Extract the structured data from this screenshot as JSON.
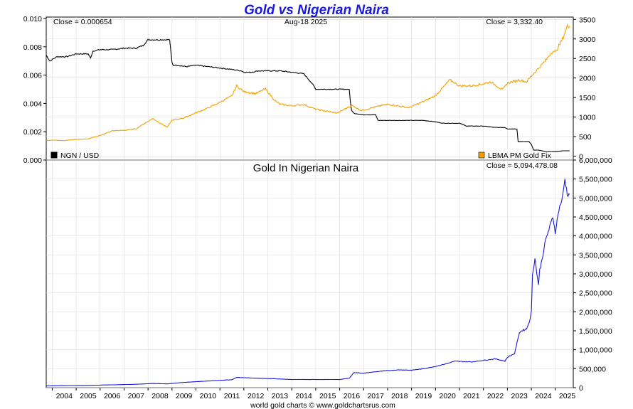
{
  "title": "Gold vs Nigerian Naira",
  "date": "Aug-18  2025",
  "footer": "world gold charts © www.goldchartsrus.com",
  "chart_data": [
    {
      "type": "line",
      "panel": "top",
      "close_left": "Close = 0.000654",
      "close_right": "Close = 3,332.40",
      "legend_left": "NGN / USD",
      "legend_right": "LBMA PM Gold Fix",
      "legend_placement": "bottom",
      "grid": true,
      "x_range": [
        2003.75,
        2025.75
      ],
      "y_left_range": [
        0.0,
        0.0101
      ],
      "y_left_ticks": [
        "0.000",
        "0.002",
        "0.004",
        "0.006",
        "0.008",
        "0.010"
      ],
      "y_right_range": [
        -100,
        3560
      ],
      "y_right_ticks": [
        "0",
        "500",
        "1000",
        "1500",
        "2000",
        "2500",
        "3000",
        "3500"
      ],
      "series": [
        {
          "name": "NGN / USD",
          "axis": "left",
          "color": "#000000",
          "x": [
            2003.75,
            2003.9,
            2004.2,
            2004.6,
            2005.0,
            2005.5,
            2005.6,
            2005.7,
            2006.0,
            2006.5,
            2007.0,
            2007.5,
            2007.8,
            2008.0,
            2008.3,
            2008.6,
            2008.9,
            2009.0,
            2009.05,
            2009.2,
            2009.6,
            2010.0,
            2010.5,
            2011.0,
            2011.5,
            2011.9,
            2012.0,
            2012.3,
            2012.6,
            2013.0,
            2013.5,
            2014.0,
            2014.5,
            2014.9,
            2015.0,
            2015.1,
            2015.5,
            2016.0,
            2016.4,
            2016.45,
            2016.5,
            2016.6,
            2017.0,
            2017.5,
            2017.6,
            2018.0,
            2018.5,
            2019.0,
            2019.5,
            2020.0,
            2020.3,
            2020.4,
            2021.0,
            2021.3,
            2021.5,
            2022.0,
            2022.5,
            2022.9,
            2023.0,
            2023.4,
            2023.45,
            2023.6,
            2023.9,
            2024.0,
            2024.1,
            2024.3,
            2024.6,
            2025.0,
            2025.3,
            2025.6
          ],
          "y": [
            0.0074,
            0.007,
            0.0073,
            0.0073,
            0.0075,
            0.0075,
            0.0072,
            0.0077,
            0.0078,
            0.0078,
            0.0079,
            0.0079,
            0.0081,
            0.0085,
            0.0085,
            0.0085,
            0.0085,
            0.0069,
            0.0067,
            0.0067,
            0.0066,
            0.0067,
            0.0066,
            0.0065,
            0.0064,
            0.0063,
            0.0062,
            0.0062,
            0.0063,
            0.0063,
            0.0063,
            0.0062,
            0.0061,
            0.0053,
            0.005,
            0.005,
            0.005,
            0.005,
            0.005,
            0.004,
            0.0035,
            0.0033,
            0.0032,
            0.0032,
            0.0028,
            0.0028,
            0.0028,
            0.0028,
            0.0028,
            0.0027,
            0.0026,
            0.0026,
            0.0026,
            0.0024,
            0.0024,
            0.0024,
            0.0023,
            0.0023,
            0.0022,
            0.0022,
            0.0013,
            0.0013,
            0.0013,
            0.0011,
            0.0007,
            0.0007,
            0.0006,
            0.0006,
            0.00065,
            0.000654
          ]
        },
        {
          "name": "LBMA PM Gold Fix",
          "axis": "right",
          "color": "#f5a000",
          "x": [
            2003.75,
            2004.0,
            2004.5,
            2005.0,
            2005.5,
            2006.0,
            2006.4,
            2006.5,
            2007.0,
            2007.5,
            2008.0,
            2008.2,
            2008.8,
            2009.0,
            2009.5,
            2010.0,
            2010.5,
            2011.0,
            2011.5,
            2011.7,
            2012.0,
            2012.5,
            2012.9,
            2013.3,
            2013.5,
            2014.0,
            2014.5,
            2015.0,
            2015.9,
            2016.5,
            2016.9,
            2017.5,
            2018.0,
            2018.5,
            2018.9,
            2019.5,
            2020.0,
            2020.6,
            2021.0,
            2021.5,
            2022.0,
            2022.3,
            2022.8,
            2023.0,
            2023.5,
            2023.8,
            2024.0,
            2024.3,
            2024.6,
            2024.9,
            2025.0,
            2025.3,
            2025.5,
            2025.6
          ],
          "y": [
            400,
            410,
            400,
            430,
            440,
            530,
            620,
            650,
            660,
            700,
            890,
            960,
            740,
            920,
            980,
            1110,
            1230,
            1380,
            1540,
            1800,
            1650,
            1600,
            1720,
            1420,
            1330,
            1290,
            1320,
            1200,
            1100,
            1300,
            1170,
            1260,
            1330,
            1280,
            1240,
            1400,
            1550,
            1950,
            1800,
            1800,
            1850,
            1900,
            1700,
            1870,
            1950,
            1900,
            2050,
            2250,
            2450,
            2700,
            2650,
            3000,
            3320,
            3332
          ]
        }
      ]
    },
    {
      "type": "line",
      "panel": "bottom",
      "title": "Gold In Nigerian Naira",
      "close_right": "Close = 5,094,478.08",
      "grid": true,
      "x_range": [
        2003.75,
        2025.75
      ],
      "y_right_range": [
        0,
        6000000
      ],
      "y_right_ticks": [
        "0",
        "500,000",
        "1,000,000",
        "1,500,000",
        "2,000,000",
        "2,500,000",
        "3,000,000",
        "3,500,000",
        "4,000,000",
        "4,500,000",
        "5,000,000",
        "5,500,000",
        "6,000,000"
      ],
      "x_tick_labels": [
        "2004",
        "2005",
        "2006",
        "2007",
        "2008",
        "2009",
        "2010",
        "2011",
        "2012",
        "2013",
        "2014",
        "2015",
        "2016",
        "2017",
        "2018",
        "2019",
        "2020",
        "2021",
        "2022",
        "2023",
        "2024",
        "2025"
      ],
      "series": [
        {
          "name": "",
          "axis": "right",
          "color": "#1a1adb",
          "x": [
            2003.75,
            2004.5,
            2005.5,
            2006.5,
            2007.5,
            2008.2,
            2008.8,
            2009.5,
            2010.5,
            2011.5,
            2011.7,
            2012.5,
            2013.3,
            2014.0,
            2015.0,
            2016.0,
            2016.4,
            2016.6,
            2017.0,
            2017.5,
            2018.0,
            2018.5,
            2019.0,
            2019.5,
            2020.0,
            2020.5,
            2020.8,
            2021.0,
            2021.5,
            2022.0,
            2022.5,
            2022.9,
            2023.0,
            2023.3,
            2023.5,
            2023.6,
            2023.8,
            2023.95,
            2024.0,
            2024.05,
            2024.15,
            2024.3,
            2024.35,
            2024.45,
            2024.6,
            2024.8,
            2024.9,
            2025.0,
            2025.15,
            2025.3,
            2025.4,
            2025.5,
            2025.6
          ],
          "y": [
            45000,
            55000,
            60000,
            75000,
            90000,
            110000,
            100000,
            140000,
            175000,
            210000,
            270000,
            250000,
            235000,
            215000,
            215000,
            215000,
            250000,
            400000,
            380000,
            420000,
            450000,
            470000,
            460000,
            500000,
            560000,
            640000,
            700000,
            690000,
            680000,
            720000,
            760000,
            700000,
            800000,
            900000,
            1450000,
            1500000,
            1550000,
            1800000,
            2000000,
            3000000,
            3400000,
            2700000,
            3100000,
            3400000,
            3900000,
            4300000,
            4500000,
            4100000,
            4700000,
            5000000,
            5500000,
            5100000,
            5094478
          ]
        }
      ]
    }
  ]
}
